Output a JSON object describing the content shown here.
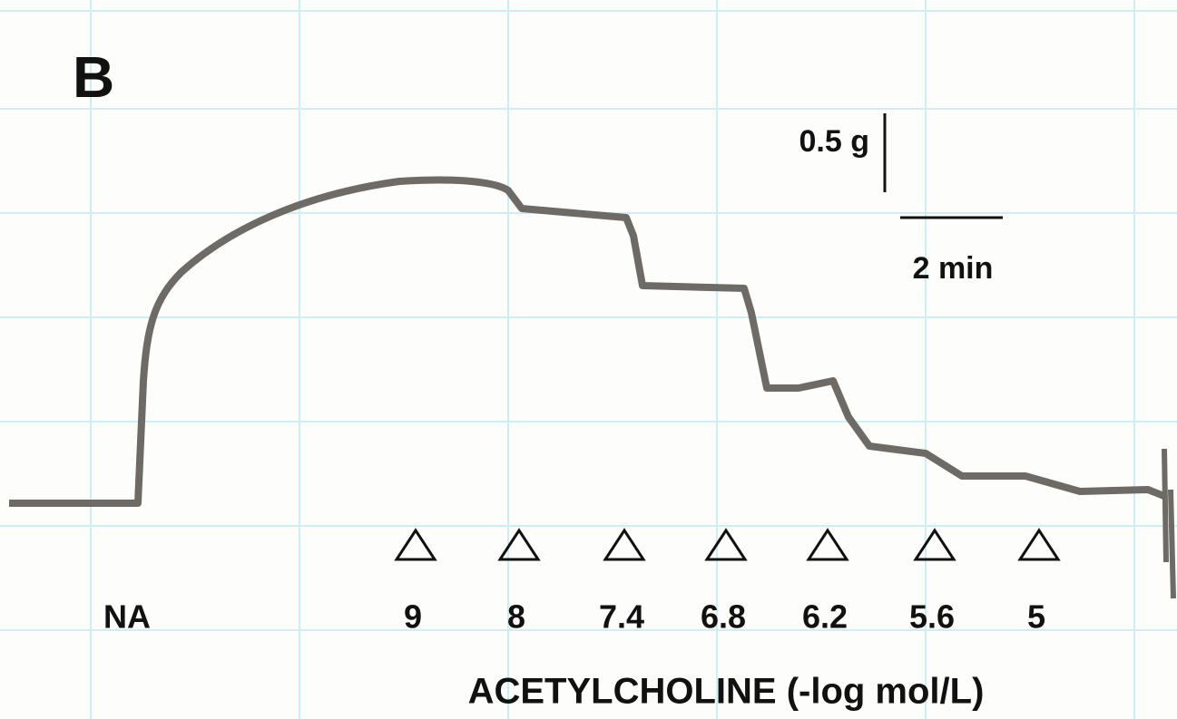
{
  "panel_label": "B",
  "scale_bar": {
    "force": "0.5 g",
    "time": "2 min"
  },
  "stimulus": "NA",
  "doses": [
    9,
    8,
    7.4,
    6.8,
    6.2,
    5.6,
    5
  ],
  "x_label": "ACETYLCHOLINE (-log mol/L)"
}
